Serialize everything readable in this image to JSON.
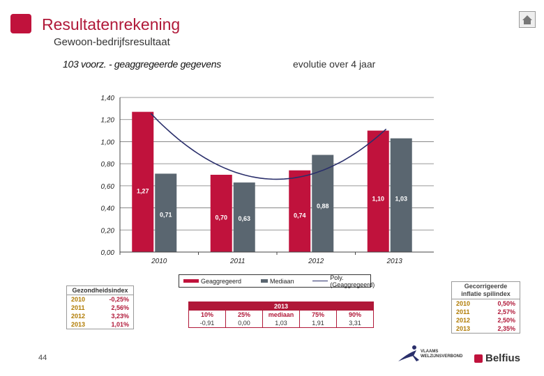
{
  "header": {
    "title": "Resultatenrekening",
    "subtitle": "Gewoon-bedrijfsresultaat"
  },
  "chart_title": "103 voorz. - geaggregeerde gegevens",
  "chart_note": "evolutie over 4 jaar",
  "chart_data": {
    "type": "bar",
    "categories": [
      "2010",
      "2011",
      "2012",
      "2013"
    ],
    "series": [
      {
        "name": "Geaggregeerd",
        "values": [
          1.27,
          0.7,
          0.74,
          1.1
        ],
        "labels": [
          "1,27",
          "0,70",
          "0,74",
          "1,10"
        ],
        "color": "#c0123c"
      },
      {
        "name": "Mediaan",
        "values": [
          0.71,
          0.63,
          0.88,
          1.03
        ],
        "labels": [
          "0,71",
          "0,63",
          "0,88",
          "1,03"
        ],
        "color": "#5a6670"
      }
    ],
    "trend": {
      "name": "Poly. (Geaggregeerd)",
      "type": "polynomial",
      "color": "#2a2f6b"
    },
    "yticks": [
      "0,00",
      "0,20",
      "0,40",
      "0,60",
      "0,80",
      "1,00",
      "1,20",
      "1,40"
    ],
    "ylim": [
      0,
      1.4
    ],
    "grid": true,
    "legend_position": "bottom"
  },
  "health_index": {
    "title": "Gezondheidsindex",
    "rows": [
      {
        "year": "2010",
        "value": "-0,25%"
      },
      {
        "year": "2011",
        "value": "2,56%"
      },
      {
        "year": "2012",
        "value": "3,23%"
      },
      {
        "year": "2013",
        "value": "1,01%"
      }
    ]
  },
  "inflation": {
    "title_line1": "Gecorrigeerde",
    "title_line2": "inflatie spilindex",
    "rows": [
      {
        "year": "2010",
        "value": "0,50%"
      },
      {
        "year": "2011",
        "value": "2,57%"
      },
      {
        "year": "2012",
        "value": "2,50%"
      },
      {
        "year": "2013",
        "value": "2,35%"
      }
    ]
  },
  "percentiles": {
    "year": "2013",
    "columns": [
      {
        "label": "10%",
        "value": "-0,91"
      },
      {
        "label": "25%",
        "value": "0,00"
      },
      {
        "label": "mediaan",
        "value": "1,03"
      },
      {
        "label": "75%",
        "value": "1,91"
      },
      {
        "label": "90%",
        "value": "3,31"
      }
    ]
  },
  "page_number": "44",
  "logos": {
    "vlaams_line1": "VLAAMS",
    "vlaams_line2": "WELZIJNSVERBOND",
    "belfius": "Belfius"
  },
  "colors": {
    "accent": "#c0123c",
    "median": "#5a6670",
    "trend": "#2a2f6b"
  }
}
